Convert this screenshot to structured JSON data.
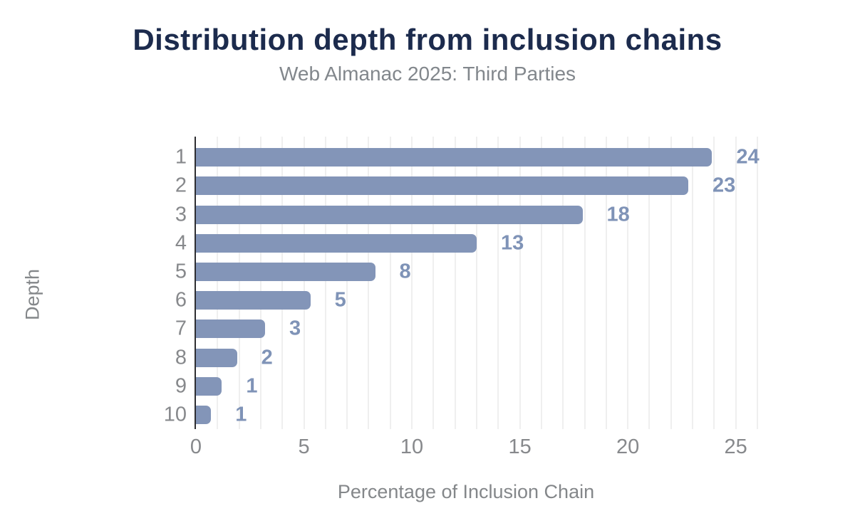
{
  "chart_data": {
    "type": "bar",
    "orientation": "horizontal",
    "title": "Distribution depth from inclusion chains",
    "subtitle": "Web Almanac 2025: Third Parties",
    "xlabel": "Percentage of Inclusion Chain",
    "ylabel": "Depth",
    "categories": [
      "1",
      "2",
      "3",
      "4",
      "5",
      "6",
      "7",
      "8",
      "9",
      "10"
    ],
    "values": [
      23.9,
      22.8,
      17.9,
      13.0,
      8.3,
      5.3,
      3.2,
      1.9,
      1.2,
      0.7
    ],
    "value_labels": [
      "24",
      "23",
      "18",
      "13",
      "8",
      "5",
      "3",
      "2",
      "1",
      "1"
    ],
    "xticks": [
      0,
      5,
      10,
      15,
      20,
      25
    ],
    "xmax": 26,
    "gridline_interval": 1,
    "grid": true,
    "legend": false,
    "colors": {
      "bar": "#8395b8",
      "value_label": "#7f93b7",
      "title": "#1c2b4d",
      "subtitle": "#82878c",
      "axis_text": "#87898c",
      "axis_title": "#84878a",
      "gridline": "#efefef",
      "axis_line": "#2e2e31",
      "background": "#ffffff"
    }
  }
}
